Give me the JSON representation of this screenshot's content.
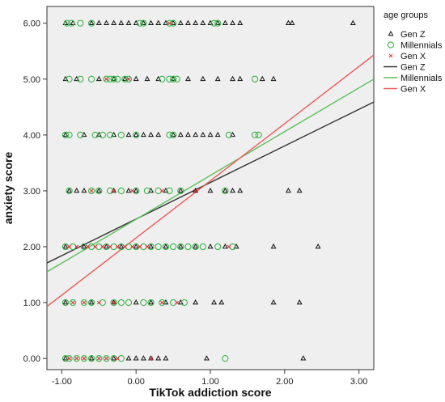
{
  "chart_data": {
    "type": "scatter",
    "title": "",
    "xlabel": "TikTok addiction score",
    "ylabel": "anxiety score",
    "xlim": [
      -1.2,
      3.2
    ],
    "ylim": [
      -0.2,
      6.3
    ],
    "x_ticks": [
      "-1.00",
      "0.00",
      "1.00",
      "2.00",
      "3.00"
    ],
    "x_tick_values": [
      -1,
      0,
      1,
      2,
      3
    ],
    "y_ticks": [
      "0.00",
      "1.00",
      "2.00",
      "3.00",
      "4.00",
      "5.00",
      "6.00"
    ],
    "y_tick_values": [
      0,
      1,
      2,
      3,
      4,
      5,
      6
    ],
    "grid": false,
    "background": "#efefef",
    "legend_position": "right",
    "legend_title": "age groups",
    "legend_entries": [
      {
        "label": "Gen Z",
        "kind": "triangle-marker",
        "color": "#111111"
      },
      {
        "label": "Millennials",
        "kind": "circle-marker",
        "color": "#3cb44b"
      },
      {
        "label": "Gen X",
        "kind": "x-marker",
        "color": "#e0383a"
      },
      {
        "label": "Gen Z",
        "kind": "line",
        "color": "#333333"
      },
      {
        "label": "Millennials",
        "kind": "line",
        "color": "#5cc15c"
      },
      {
        "label": "Gen X",
        "kind": "line",
        "color": "#ef5a5a"
      }
    ],
    "series": [
      {
        "name": "Gen Z",
        "marker": "triangle",
        "color": "#111111",
        "points": [
          [
            -0.95,
            6
          ],
          [
            -0.85,
            6
          ],
          [
            -0.6,
            6
          ],
          [
            -0.5,
            6
          ],
          [
            -0.4,
            6
          ],
          [
            -0.3,
            6
          ],
          [
            -0.2,
            6
          ],
          [
            -0.1,
            6
          ],
          [
            0.0,
            6
          ],
          [
            0.1,
            6
          ],
          [
            0.2,
            6
          ],
          [
            0.3,
            6
          ],
          [
            0.4,
            6
          ],
          [
            0.5,
            6
          ],
          [
            0.6,
            6
          ],
          [
            0.7,
            6
          ],
          [
            0.8,
            6
          ],
          [
            0.9,
            6
          ],
          [
            1.0,
            6
          ],
          [
            1.1,
            6
          ],
          [
            1.2,
            6
          ],
          [
            1.3,
            6
          ],
          [
            1.4,
            6
          ],
          [
            2.05,
            6
          ],
          [
            2.1,
            6
          ],
          [
            2.92,
            6
          ],
          [
            -0.95,
            5
          ],
          [
            -0.8,
            5
          ],
          [
            -0.5,
            5
          ],
          [
            -0.3,
            5
          ],
          [
            -0.15,
            5
          ],
          [
            0.0,
            5
          ],
          [
            0.15,
            5
          ],
          [
            0.3,
            5
          ],
          [
            0.5,
            5
          ],
          [
            0.7,
            5
          ],
          [
            0.9,
            5
          ],
          [
            1.1,
            5
          ],
          [
            1.3,
            5
          ],
          [
            1.4,
            5
          ],
          [
            1.7,
            5
          ],
          [
            1.85,
            5
          ],
          [
            -0.95,
            4
          ],
          [
            -0.7,
            4
          ],
          [
            -0.5,
            4
          ],
          [
            -0.3,
            4
          ],
          [
            -0.1,
            4
          ],
          [
            0.0,
            4
          ],
          [
            0.1,
            4
          ],
          [
            0.2,
            4
          ],
          [
            0.3,
            4
          ],
          [
            0.5,
            4
          ],
          [
            0.6,
            4
          ],
          [
            0.7,
            4
          ],
          [
            0.8,
            4
          ],
          [
            0.9,
            4
          ],
          [
            1.0,
            4
          ],
          [
            1.1,
            4
          ],
          [
            1.3,
            4
          ],
          [
            -0.9,
            3
          ],
          [
            -0.8,
            3
          ],
          [
            -0.7,
            3
          ],
          [
            -0.5,
            3
          ],
          [
            -0.3,
            3
          ],
          [
            -0.1,
            3
          ],
          [
            0.0,
            3
          ],
          [
            0.2,
            3
          ],
          [
            0.4,
            3
          ],
          [
            0.6,
            3
          ],
          [
            0.8,
            3
          ],
          [
            1.0,
            3
          ],
          [
            1.2,
            3
          ],
          [
            1.3,
            3
          ],
          [
            1.4,
            3
          ],
          [
            2.05,
            3
          ],
          [
            2.2,
            3
          ],
          [
            -0.95,
            2
          ],
          [
            -0.7,
            2
          ],
          [
            -0.4,
            2
          ],
          [
            -0.2,
            2
          ],
          [
            0.0,
            2
          ],
          [
            0.2,
            2
          ],
          [
            0.4,
            2
          ],
          [
            0.6,
            2
          ],
          [
            0.8,
            2
          ],
          [
            1.0,
            2
          ],
          [
            1.2,
            2
          ],
          [
            1.35,
            2
          ],
          [
            1.85,
            2
          ],
          [
            2.45,
            2
          ],
          [
            -0.95,
            1
          ],
          [
            -0.6,
            1
          ],
          [
            -0.3,
            1
          ],
          [
            0.0,
            1
          ],
          [
            0.2,
            1
          ],
          [
            0.4,
            1
          ],
          [
            0.6,
            1
          ],
          [
            0.8,
            1
          ],
          [
            1.05,
            1
          ],
          [
            1.15,
            1
          ],
          [
            1.85,
            1
          ],
          [
            2.2,
            1
          ],
          [
            -0.95,
            0
          ],
          [
            -0.6,
            0
          ],
          [
            -0.3,
            0
          ],
          [
            -0.1,
            0
          ],
          [
            0.0,
            0
          ],
          [
            0.1,
            0
          ],
          [
            0.2,
            0
          ],
          [
            0.3,
            0
          ],
          [
            0.4,
            0
          ],
          [
            0.95,
            0
          ],
          [
            2.25,
            0
          ]
        ]
      },
      {
        "name": "Millennials",
        "marker": "circle",
        "color": "#3cb44b",
        "points": [
          [
            -0.93,
            6
          ],
          [
            -0.87,
            6
          ],
          [
            -0.75,
            6
          ],
          [
            -0.6,
            6
          ],
          [
            0.05,
            6
          ],
          [
            0.1,
            6
          ],
          [
            0.45,
            6
          ],
          [
            0.5,
            6
          ],
          [
            1.05,
            6
          ],
          [
            1.1,
            6
          ],
          [
            -0.9,
            5
          ],
          [
            -0.75,
            5
          ],
          [
            -0.6,
            5
          ],
          [
            -0.4,
            5
          ],
          [
            -0.35,
            5
          ],
          [
            -0.3,
            5
          ],
          [
            -0.25,
            5
          ],
          [
            -0.15,
            5
          ],
          [
            -0.1,
            5
          ],
          [
            0.35,
            5
          ],
          [
            0.45,
            5
          ],
          [
            0.5,
            5
          ],
          [
            0.55,
            5
          ],
          [
            1.6,
            5
          ],
          [
            -0.95,
            4
          ],
          [
            -0.9,
            4
          ],
          [
            -0.75,
            4
          ],
          [
            -0.55,
            4
          ],
          [
            -0.45,
            4
          ],
          [
            -0.35,
            4
          ],
          [
            -0.2,
            4
          ],
          [
            0.0,
            4
          ],
          [
            0.45,
            4
          ],
          [
            0.5,
            4
          ],
          [
            1.25,
            4
          ],
          [
            1.6,
            4
          ],
          [
            1.65,
            4
          ],
          [
            -0.9,
            3
          ],
          [
            -0.6,
            3
          ],
          [
            -0.5,
            3
          ],
          [
            -0.35,
            3
          ],
          [
            -0.2,
            3
          ],
          [
            0.0,
            3
          ],
          [
            0.15,
            3
          ],
          [
            0.3,
            3
          ],
          [
            0.45,
            3
          ],
          [
            0.6,
            3
          ],
          [
            1.2,
            3
          ],
          [
            -0.95,
            2
          ],
          [
            -0.85,
            2
          ],
          [
            -0.7,
            2
          ],
          [
            -0.6,
            2
          ],
          [
            -0.5,
            2
          ],
          [
            -0.4,
            2
          ],
          [
            -0.3,
            2
          ],
          [
            -0.2,
            2
          ],
          [
            -0.1,
            2
          ],
          [
            0.0,
            2
          ],
          [
            0.1,
            2
          ],
          [
            0.2,
            2
          ],
          [
            0.3,
            2
          ],
          [
            0.4,
            2
          ],
          [
            0.5,
            2
          ],
          [
            0.6,
            2
          ],
          [
            0.7,
            2
          ],
          [
            0.8,
            2
          ],
          [
            0.9,
            2
          ],
          [
            1.1,
            2
          ],
          [
            1.3,
            2
          ],
          [
            -0.95,
            1
          ],
          [
            -0.85,
            1
          ],
          [
            -0.7,
            1
          ],
          [
            -0.6,
            1
          ],
          [
            -0.45,
            1
          ],
          [
            -0.3,
            1
          ],
          [
            -0.2,
            1
          ],
          [
            -0.1,
            1
          ],
          [
            0.1,
            1
          ],
          [
            0.2,
            1
          ],
          [
            0.35,
            1
          ],
          [
            0.5,
            1
          ],
          [
            0.65,
            1
          ],
          [
            -0.95,
            0
          ],
          [
            -0.9,
            0
          ],
          [
            -0.8,
            0
          ],
          [
            -0.7,
            0
          ],
          [
            -0.6,
            0
          ],
          [
            -0.5,
            0
          ],
          [
            -0.4,
            0
          ],
          [
            -0.3,
            0
          ],
          [
            -0.2,
            0
          ],
          [
            1.2,
            0
          ]
        ]
      },
      {
        "name": "Gen X",
        "marker": "x",
        "color": "#e0383a",
        "points": [
          [
            0.45,
            6
          ],
          [
            -0.4,
            5
          ],
          [
            -0.1,
            5
          ],
          [
            -0.6,
            3
          ],
          [
            -0.3,
            3
          ],
          [
            -0.05,
            3
          ],
          [
            0.35,
            3
          ],
          [
            0.8,
            3
          ],
          [
            -0.9,
            2
          ],
          [
            -0.8,
            2
          ],
          [
            -0.65,
            2
          ],
          [
            -0.55,
            2
          ],
          [
            -0.45,
            2
          ],
          [
            -0.35,
            2
          ],
          [
            -0.25,
            2
          ],
          [
            -0.15,
            2
          ],
          [
            -0.05,
            2
          ],
          [
            0.05,
            2
          ],
          [
            0.15,
            2
          ],
          [
            1.25,
            2
          ],
          [
            -0.85,
            1
          ],
          [
            -0.7,
            1
          ],
          [
            -0.5,
            1
          ],
          [
            -0.3,
            1
          ],
          [
            0.35,
            1
          ],
          [
            0.55,
            1
          ],
          [
            -0.9,
            0
          ],
          [
            -0.8,
            0
          ],
          [
            -0.7,
            0
          ],
          [
            -0.5,
            0
          ],
          [
            -0.4,
            0
          ],
          [
            -0.25,
            0
          ],
          [
            0.2,
            0
          ]
        ]
      }
    ],
    "fit_lines": [
      {
        "name": "Gen Z",
        "color": "#333333",
        "x": [
          -1.2,
          3.2
        ],
        "y": [
          1.71,
          4.59
        ]
      },
      {
        "name": "Millennials",
        "color": "#5cc15c",
        "x": [
          -1.2,
          3.2
        ],
        "y": [
          1.55,
          5.0
        ]
      },
      {
        "name": "Gen X",
        "color": "#ef5a5a",
        "x": [
          -1.2,
          3.2
        ],
        "y": [
          0.93,
          5.43
        ]
      }
    ]
  }
}
